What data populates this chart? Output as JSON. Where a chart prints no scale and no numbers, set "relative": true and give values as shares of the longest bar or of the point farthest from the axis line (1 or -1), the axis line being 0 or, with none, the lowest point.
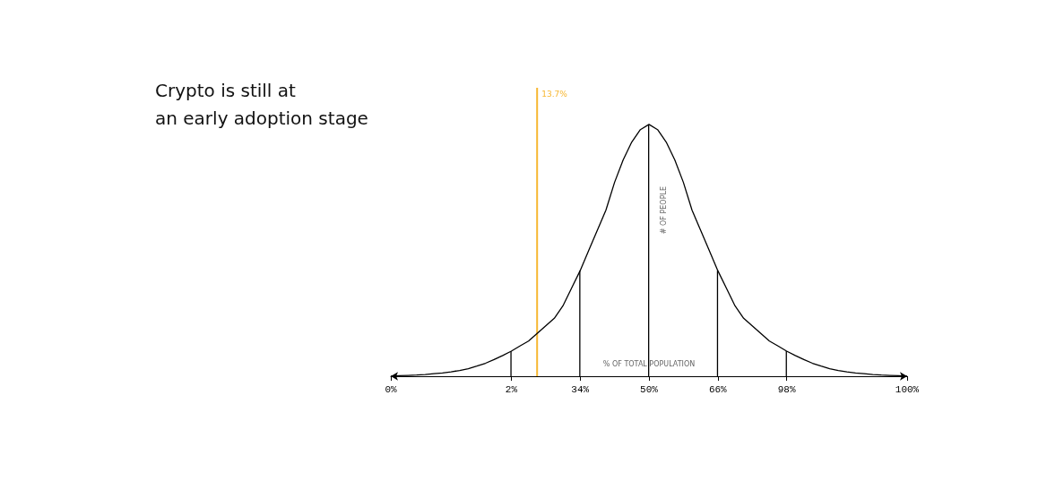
{
  "chart_data": {
    "type": "line",
    "title": "Crypto is still at\nan early adoption stage",
    "xlabel": "% OF TOTAL POPULATION",
    "ylabel": "# OF PEOPLE",
    "relative": true,
    "grid": false,
    "marker": "none",
    "line_style": "solid",
    "annotations": [
      "13.7%"
    ],
    "categories": [
      "0%",
      null,
      null,
      null,
      null,
      null,
      null,
      null,
      null,
      null,
      null,
      null,
      null,
      null,
      "2%",
      null,
      null,
      null,
      null,
      null,
      null,
      null,
      "34%",
      null,
      null,
      null,
      null,
      null,
      null,
      null,
      "50%",
      null,
      null,
      null,
      null,
      null,
      null,
      null,
      "66%",
      null,
      null,
      null,
      null,
      null,
      null,
      null,
      "98%",
      null,
      null,
      null,
      null,
      null,
      null,
      null,
      null,
      null,
      null,
      null,
      null,
      null,
      "100%"
    ],
    "series": [
      {
        "color": "#000000",
        "values": [
          0,
          0.002,
          0.003,
          0.004,
          0.006,
          0.009,
          0.011,
          0.015,
          0.02,
          0.026,
          0.035,
          0.045,
          0.058,
          0.072,
          0.087,
          0.105,
          0.122,
          0.148,
          0.175,
          0.201,
          0.244,
          0.305,
          0.366,
          0.436,
          0.506,
          0.576,
          0.672,
          0.75,
          0.812,
          0.855,
          0.873,
          0.855,
          0.812,
          0.75,
          0.672,
          0.576,
          0.506,
          0.436,
          0.366,
          0.305,
          0.244,
          0.201,
          0.175,
          0.148,
          0.122,
          0.105,
          0.087,
          0.072,
          0.058,
          0.045,
          0.035,
          0.026,
          0.02,
          0.015,
          0.011,
          0.009,
          0.006,
          0.004,
          0.003,
          0.002,
          0
        ]
      },
      {
        "type": "bar",
        "color": "#000000",
        "values": [
          null,
          null,
          null,
          null,
          null,
          null,
          null,
          null,
          null,
          null,
          null,
          null,
          null,
          null,
          0.087,
          null,
          null,
          null,
          null,
          null,
          null,
          null,
          0.366,
          null,
          null,
          null,
          null,
          null,
          null,
          null,
          0.873,
          null,
          null,
          null,
          null,
          null,
          null,
          null,
          0.366,
          null,
          null,
          null,
          null,
          null,
          null,
          null,
          0.087,
          null,
          null,
          null,
          null,
          null,
          null,
          null,
          null,
          null,
          null,
          null,
          null,
          null,
          null
        ]
      },
      {
        "type": "bar",
        "color": "#f7b731",
        "values": [
          null,
          null,
          null,
          null,
          null,
          null,
          null,
          null,
          null,
          null,
          null,
          null,
          null,
          null,
          null,
          null,
          null,
          1,
          null,
          null,
          null,
          null,
          null,
          null,
          null,
          null,
          null,
          null,
          null,
          null,
          null,
          null,
          null,
          null,
          null,
          null,
          null,
          null,
          null,
          null,
          null,
          null,
          null,
          null,
          null,
          null,
          null,
          null,
          null,
          null,
          null,
          null,
          null,
          null,
          null,
          null,
          null,
          null,
          null,
          null,
          null
        ]
      }
    ]
  }
}
